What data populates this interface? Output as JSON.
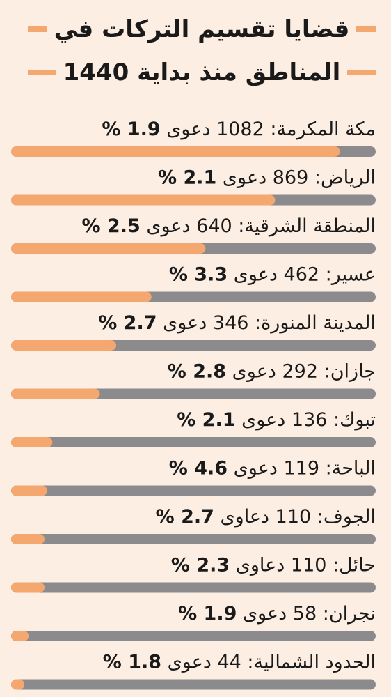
{
  "title": {
    "line1": "قضايا تقسيم التركات في",
    "line2": "المناطق منذ بداية 1440"
  },
  "colors": {
    "background": "#fdeee3",
    "bar_track": "#8b8a8c",
    "bar_fill": "#f4a76f",
    "title_rule": "#f4a76f",
    "text": "#1a1a1a"
  },
  "chart_data": {
    "type": "bar",
    "orientation": "horizontal",
    "title": "قضايا تقسيم التركات في المناطق منذ بداية 1440",
    "categories": [
      "مكة المكرمة",
      "الرياض",
      "المنطقة الشرقية",
      "عسير",
      "المدينة المنورة",
      "جازان",
      "تبوك",
      "الباحة",
      "الجوف",
      "حائل",
      "نجران",
      "الحدود الشمالية"
    ],
    "values": [
      1082,
      869,
      640,
      462,
      346,
      292,
      136,
      119,
      110,
      110,
      58,
      44
    ],
    "units": [
      "دعوى",
      "دعوى",
      "دعوى",
      "دعوى",
      "دعوى",
      "دعوى",
      "دعوى",
      "دعوى",
      "دعاوى",
      "دعاوى",
      "دعوى",
      "دعوى"
    ],
    "percent_labels": [
      "1.9",
      "2.1",
      "2.5",
      "3.3",
      "2.7",
      "2.8",
      "2.1",
      "4.6",
      "2.7",
      "2.3",
      "1.9",
      "1.8"
    ],
    "percent_sign": "%",
    "xlim": [
      0,
      1200
    ],
    "grid": false,
    "legend": "none"
  }
}
